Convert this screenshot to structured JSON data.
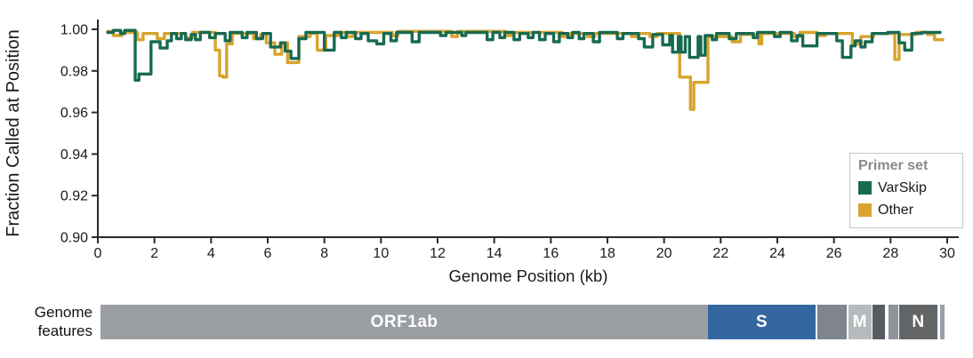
{
  "figure": {
    "background": "#ffffff",
    "axis_color": "#2b2b2b",
    "text_color": "#1a1a1a"
  },
  "chart_data": {
    "type": "line",
    "title": "",
    "ylabel": "Fraction Called at Position",
    "xlabel": "Genome Position (kb)",
    "xlim": [
      0,
      30
    ],
    "ylim": [
      0.9,
      1.005
    ],
    "grid": false,
    "interpolation": "step-after",
    "xticks": [
      0,
      2,
      4,
      6,
      8,
      10,
      12,
      14,
      16,
      18,
      20,
      22,
      24,
      26,
      28,
      30
    ],
    "yticks": [
      {
        "value": 1.0,
        "label": "1.00"
      },
      {
        "value": 0.98,
        "label": "0.98"
      },
      {
        "value": 0.96,
        "label": "0.96"
      },
      {
        "value": 0.94,
        "label": "0.94"
      },
      {
        "value": 0.92,
        "label": "0.92"
      },
      {
        "value": 0.9,
        "label": "0.90"
      }
    ],
    "legend": {
      "title": "Primer set",
      "position": "right",
      "entries": [
        {
          "name": "VarSkip",
          "color": "#176a51"
        },
        {
          "name": "Other",
          "color": "#d7a42d"
        }
      ]
    },
    "series": [
      {
        "name": "Other",
        "color": "#d7a42d",
        "x_end": 29.85,
        "steps": [
          [
            0.35,
            0.999
          ],
          [
            0.55,
            0.997
          ],
          [
            0.85,
            0.9985
          ],
          [
            1.4,
            0.995
          ],
          [
            1.6,
            0.998
          ],
          [
            2.1,
            0.9955
          ],
          [
            2.35,
            0.998
          ],
          [
            3.1,
            0.996
          ],
          [
            3.35,
            0.9985
          ],
          [
            4.15,
            0.99
          ],
          [
            4.3,
            0.9775
          ],
          [
            4.42,
            0.977
          ],
          [
            4.55,
            0.993
          ],
          [
            4.75,
            0.998
          ],
          [
            5.5,
            0.9955
          ],
          [
            5.75,
            0.9975
          ],
          [
            5.95,
            0.9935
          ],
          [
            6.25,
            0.988
          ],
          [
            6.5,
            0.9935
          ],
          [
            6.7,
            0.984
          ],
          [
            7.1,
            0.9965
          ],
          [
            7.5,
            0.998
          ],
          [
            7.75,
            0.99
          ],
          [
            8.05,
            0.997
          ],
          [
            8.5,
            0.9985
          ],
          [
            8.8,
            0.9965
          ],
          [
            9.0,
            0.9985
          ],
          [
            10.4,
            0.997
          ],
          [
            10.6,
            0.999
          ],
          [
            12.5,
            0.9965
          ],
          [
            12.7,
            0.999
          ],
          [
            14.4,
            0.997
          ],
          [
            14.6,
            0.9985
          ],
          [
            16.4,
            0.9965
          ],
          [
            16.65,
            0.998
          ],
          [
            17.3,
            0.9965
          ],
          [
            17.55,
            0.998
          ],
          [
            18.85,
            0.9965
          ],
          [
            19.1,
            0.998
          ],
          [
            19.5,
            0.9965
          ],
          [
            19.75,
            0.998
          ],
          [
            20.55,
            0.977
          ],
          [
            20.93,
            0.9615
          ],
          [
            21.05,
            0.9745
          ],
          [
            21.55,
            0.9965
          ],
          [
            22.4,
            0.994
          ],
          [
            22.7,
            0.9975
          ],
          [
            23.35,
            0.993
          ],
          [
            23.45,
            0.998
          ],
          [
            24.6,
            0.9965
          ],
          [
            24.8,
            0.9985
          ],
          [
            25.4,
            0.997
          ],
          [
            25.7,
            0.998
          ],
          [
            26.65,
            0.993
          ],
          [
            26.95,
            0.9965
          ],
          [
            27.4,
            0.998
          ],
          [
            28.15,
            0.9855
          ],
          [
            28.3,
            0.9975
          ],
          [
            28.9,
            0.9985
          ],
          [
            29.3,
            0.9975
          ],
          [
            29.55,
            0.995
          ]
        ]
      },
      {
        "name": "VarSkip",
        "color": "#176a51",
        "x_end": 29.75,
        "steps": [
          [
            0.35,
            0.9985
          ],
          [
            0.55,
            0.9995
          ],
          [
            0.8,
            0.998
          ],
          [
            0.95,
            0.9995
          ],
          [
            1.32,
            0.9755
          ],
          [
            1.45,
            0.9785
          ],
          [
            1.88,
            0.994
          ],
          [
            2.2,
            0.991
          ],
          [
            2.45,
            0.9945
          ],
          [
            2.6,
            0.998
          ],
          [
            2.78,
            0.9955
          ],
          [
            2.95,
            0.998
          ],
          [
            3.1,
            0.995
          ],
          [
            3.3,
            0.9975
          ],
          [
            3.45,
            0.995
          ],
          [
            3.62,
            0.9985
          ],
          [
            3.95,
            0.996
          ],
          [
            4.15,
            0.998
          ],
          [
            4.5,
            0.9945
          ],
          [
            4.67,
            0.9985
          ],
          [
            5.1,
            0.996
          ],
          [
            5.27,
            0.9985
          ],
          [
            5.6,
            0.9955
          ],
          [
            5.82,
            0.998
          ],
          [
            6.1,
            0.9915
          ],
          [
            6.45,
            0.9935
          ],
          [
            6.62,
            0.9895
          ],
          [
            6.82,
            0.986
          ],
          [
            7.1,
            0.9955
          ],
          [
            7.35,
            0.9985
          ],
          [
            8.0,
            0.99
          ],
          [
            8.35,
            0.9985
          ],
          [
            8.6,
            0.996
          ],
          [
            8.77,
            0.9985
          ],
          [
            9.1,
            0.9955
          ],
          [
            9.3,
            0.998
          ],
          [
            9.55,
            0.9945
          ],
          [
            9.85,
            0.993
          ],
          [
            10.1,
            0.998
          ],
          [
            10.35,
            0.9945
          ],
          [
            10.55,
            0.9985
          ],
          [
            11.1,
            0.994
          ],
          [
            11.35,
            0.9985
          ],
          [
            12.1,
            0.997
          ],
          [
            12.3,
            0.9985
          ],
          [
            12.85,
            0.997
          ],
          [
            13.0,
            0.9985
          ],
          [
            13.75,
            0.995
          ],
          [
            13.95,
            0.9985
          ],
          [
            14.2,
            0.996
          ],
          [
            14.37,
            0.9985
          ],
          [
            14.7,
            0.995
          ],
          [
            14.9,
            0.998
          ],
          [
            15.2,
            0.996
          ],
          [
            15.37,
            0.9985
          ],
          [
            15.6,
            0.995
          ],
          [
            15.8,
            0.998
          ],
          [
            16.1,
            0.994
          ],
          [
            16.3,
            0.998
          ],
          [
            16.6,
            0.996
          ],
          [
            16.77,
            0.9985
          ],
          [
            17.0,
            0.9955
          ],
          [
            17.17,
            0.998
          ],
          [
            17.5,
            0.994
          ],
          [
            17.72,
            0.9985
          ],
          [
            18.35,
            0.9955
          ],
          [
            18.55,
            0.998
          ],
          [
            19.1,
            0.9955
          ],
          [
            19.3,
            0.9915
          ],
          [
            19.6,
            0.9975
          ],
          [
            19.95,
            0.9925
          ],
          [
            20.2,
            0.997
          ],
          [
            20.3,
            0.989
          ],
          [
            20.5,
            0.9965
          ],
          [
            20.6,
            0.989
          ],
          [
            20.75,
            0.9965
          ],
          [
            20.9,
            0.9865
          ],
          [
            21.2,
            0.9965
          ],
          [
            21.3,
            0.9875
          ],
          [
            21.45,
            0.997
          ],
          [
            21.7,
            0.995
          ],
          [
            21.85,
            0.998
          ],
          [
            22.3,
            0.9955
          ],
          [
            22.55,
            0.998
          ],
          [
            23.15,
            0.996
          ],
          [
            23.3,
            0.9985
          ],
          [
            23.9,
            0.9965
          ],
          [
            24.1,
            0.9985
          ],
          [
            24.5,
            0.9945
          ],
          [
            24.7,
            0.997
          ],
          [
            24.9,
            0.992
          ],
          [
            25.4,
            0.998
          ],
          [
            26.1,
            0.9945
          ],
          [
            26.3,
            0.9865
          ],
          [
            26.6,
            0.992
          ],
          [
            26.75,
            0.9945
          ],
          [
            26.95,
            0.9915
          ],
          [
            27.1,
            0.994
          ],
          [
            27.35,
            0.998
          ],
          [
            27.9,
            0.9985
          ],
          [
            28.3,
            0.9935
          ],
          [
            28.5,
            0.99
          ],
          [
            28.75,
            0.998
          ],
          [
            29.1,
            0.9985
          ]
        ]
      }
    ]
  },
  "features_track": {
    "label_line1": "Genome",
    "label_line2": "features",
    "segments": [
      {
        "label": "ORF1ab",
        "start_kb": 0.1,
        "end_kb": 21.55,
        "color": "#9b9fa3"
      },
      {
        "label": "S",
        "start_kb": 21.55,
        "end_kb": 25.36,
        "color": "#34679f"
      },
      {
        "label": "",
        "start_kb": 25.42,
        "end_kb": 26.46,
        "color": "#7e858c"
      },
      {
        "label": "M",
        "start_kb": 26.51,
        "end_kb": 27.32,
        "color": "#b5babd"
      },
      {
        "label": "",
        "start_kb": 27.35,
        "end_kb": 27.8,
        "color": "#585b5f"
      },
      {
        "label": "",
        "start_kb": 27.94,
        "end_kb": 28.27,
        "color": "#8d949b"
      },
      {
        "label": "N",
        "start_kb": 28.3,
        "end_kb": 29.66,
        "color": "#626466"
      },
      {
        "label": "",
        "start_kb": 29.74,
        "end_kb": 29.9,
        "color": "#99a0aa"
      }
    ]
  }
}
